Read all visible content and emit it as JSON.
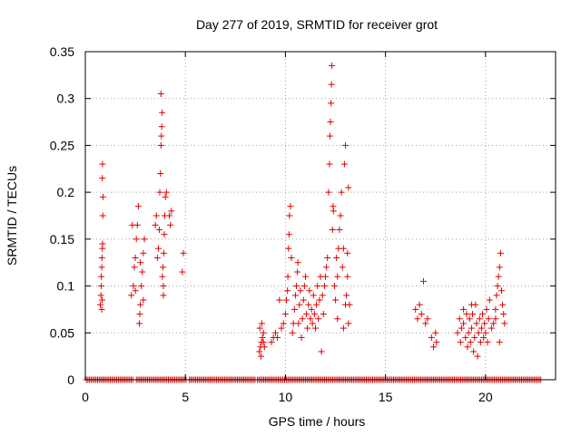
{
  "chart_data": {
    "type": "scatter",
    "title": "Day 277 of 2019, SRMTID for receiver grot",
    "xlabel": "GPS time / hours",
    "ylabel": "SRMTID / TECUs",
    "xlim": [
      0,
      23.5
    ],
    "ylim": [
      0,
      0.35
    ],
    "xticks": [
      0,
      5,
      10,
      15,
      20
    ],
    "xtick_labels": [
      "0",
      "5",
      "10",
      "15",
      "20"
    ],
    "yticks": [
      0,
      0.05,
      0.1,
      0.15,
      0.2,
      0.25,
      0.3,
      0.35
    ],
    "ytick_labels": [
      "0",
      "0.05",
      "0.1",
      "0.15",
      "0.2",
      "0.25",
      "0.3",
      "0.35"
    ],
    "grid": true,
    "marker": "plus",
    "color": "#e00000",
    "series": [
      {
        "name": "SRMTID",
        "points": [
          [
            0.75,
            0.08
          ],
          [
            0.78,
            0.09
          ],
          [
            0.8,
            0.1
          ],
          [
            0.8,
            0.11
          ],
          [
            0.82,
            0.12
          ],
          [
            0.83,
            0.13
          ],
          [
            0.85,
            0.14
          ],
          [
            0.86,
            0.145
          ],
          [
            0.87,
            0.175
          ],
          [
            0.88,
            0.195
          ],
          [
            0.85,
            0.215
          ],
          [
            0.86,
            0.23
          ],
          [
            0.82,
            0.075
          ],
          [
            0.84,
            0.085
          ],
          [
            2.3,
            0.09
          ],
          [
            2.4,
            0.1
          ],
          [
            2.45,
            0.12
          ],
          [
            2.5,
            0.13
          ],
          [
            2.55,
            0.15
          ],
          [
            2.6,
            0.165
          ],
          [
            2.65,
            0.185
          ],
          [
            2.7,
            0.06
          ],
          [
            2.72,
            0.07
          ],
          [
            2.75,
            0.08
          ],
          [
            2.8,
            0.1
          ],
          [
            2.85,
            0.115
          ],
          [
            2.9,
            0.135
          ],
          [
            2.95,
            0.15
          ],
          [
            2.35,
            0.165
          ],
          [
            2.5,
            0.095
          ],
          [
            2.75,
            0.125
          ],
          [
            2.9,
            0.085
          ],
          [
            3.5,
            0.165
          ],
          [
            3.55,
            0.175
          ],
          [
            3.6,
            0.13
          ],
          [
            3.7,
            0.16
          ],
          [
            3.72,
            0.2
          ],
          [
            3.75,
            0.22
          ],
          [
            3.78,
            0.25
          ],
          [
            3.8,
            0.26
          ],
          [
            3.82,
            0.27
          ],
          [
            3.84,
            0.285
          ],
          [
            3.78,
            0.305
          ],
          [
            3.85,
            0.11
          ],
          [
            3.88,
            0.12
          ],
          [
            3.9,
            0.1
          ],
          [
            3.92,
            0.135
          ],
          [
            3.95,
            0.155
          ],
          [
            3.97,
            0.175
          ],
          [
            4.0,
            0.195
          ],
          [
            4.05,
            0.2
          ],
          [
            4.2,
            0.175
          ],
          [
            4.25,
            0.165
          ],
          [
            4.3,
            0.18
          ],
          [
            3.65,
            0.14
          ],
          [
            3.9,
            0.09
          ],
          [
            4.9,
            0.135
          ],
          [
            4.85,
            0.115
          ],
          [
            8.7,
            0.03
          ],
          [
            8.75,
            0.035
          ],
          [
            8.8,
            0.04
          ],
          [
            8.85,
            0.045
          ],
          [
            8.9,
            0.05
          ],
          [
            8.72,
            0.055
          ],
          [
            8.78,
            0.025
          ],
          [
            8.82,
            0.06
          ],
          [
            8.9,
            0.04
          ],
          [
            8.95,
            0.035
          ],
          [
            9.3,
            0.04
          ],
          [
            9.4,
            0.045
          ],
          [
            9.5,
            0.05
          ],
          [
            9.6,
            0.045
          ],
          [
            9.7,
            0.085
          ],
          [
            9.8,
            0.055
          ],
          [
            9.9,
            0.06
          ],
          [
            10.0,
            0.07
          ],
          [
            10.05,
            0.085
          ],
          [
            10.1,
            0.095
          ],
          [
            10.12,
            0.11
          ],
          [
            10.15,
            0.14
          ],
          [
            10.18,
            0.155
          ],
          [
            10.2,
            0.175
          ],
          [
            10.25,
            0.185
          ],
          [
            10.3,
            0.13
          ],
          [
            10.35,
            0.05
          ],
          [
            10.4,
            0.06
          ],
          [
            10.45,
            0.075
          ],
          [
            10.5,
            0.09
          ],
          [
            10.55,
            0.1
          ],
          [
            10.6,
            0.115
          ],
          [
            10.62,
            0.125
          ],
          [
            10.65,
            0.06
          ],
          [
            10.7,
            0.08
          ],
          [
            10.75,
            0.095
          ],
          [
            10.8,
            0.045
          ],
          [
            10.85,
            0.065
          ],
          [
            10.9,
            0.085
          ],
          [
            10.95,
            0.1
          ],
          [
            11.0,
            0.11
          ],
          [
            11.05,
            0.07
          ],
          [
            11.1,
            0.055
          ],
          [
            11.15,
            0.08
          ],
          [
            11.2,
            0.095
          ],
          [
            11.25,
            0.065
          ],
          [
            11.3,
            0.075
          ],
          [
            11.35,
            0.06
          ],
          [
            11.4,
            0.09
          ],
          [
            11.45,
            0.07
          ],
          [
            11.5,
            0.055
          ],
          [
            11.55,
            0.08
          ],
          [
            11.6,
            0.1
          ],
          [
            11.65,
            0.065
          ],
          [
            11.7,
            0.085
          ],
          [
            11.75,
            0.11
          ],
          [
            11.8,
            0.03
          ],
          [
            11.85,
            0.09
          ],
          [
            11.9,
            0.07
          ],
          [
            11.95,
            0.1
          ],
          [
            12.0,
            0.11
          ],
          [
            12.05,
            0.12
          ],
          [
            12.1,
            0.13
          ],
          [
            12.15,
            0.2
          ],
          [
            12.2,
            0.23
          ],
          [
            12.22,
            0.26
          ],
          [
            12.25,
            0.275
          ],
          [
            12.28,
            0.295
          ],
          [
            12.3,
            0.315
          ],
          [
            12.32,
            0.335
          ],
          [
            12.35,
            0.16
          ],
          [
            12.38,
            0.185
          ],
          [
            12.4,
            0.18
          ],
          [
            12.45,
            0.1
          ],
          [
            12.5,
            0.085
          ],
          [
            12.55,
            0.13
          ],
          [
            12.6,
            0.11
          ],
          [
            12.65,
            0.14
          ],
          [
            12.7,
            0.16
          ],
          [
            12.75,
            0.175
          ],
          [
            12.8,
            0.2
          ],
          [
            12.85,
            0.12
          ],
          [
            12.9,
            0.14
          ],
          [
            12.95,
            0.23
          ],
          [
            13.0,
            0.25
          ],
          [
            13.05,
            0.09
          ],
          [
            13.1,
            0.11
          ],
          [
            13.15,
            0.06
          ],
          [
            13.2,
            0.08
          ],
          [
            12.6,
            0.065
          ],
          [
            12.9,
            0.055
          ],
          [
            13.0,
            0.08
          ],
          [
            13.1,
            0.135
          ],
          [
            13.15,
            0.205
          ],
          [
            16.5,
            0.075
          ],
          [
            16.6,
            0.065
          ],
          [
            16.7,
            0.08
          ],
          [
            16.8,
            0.07
          ],
          [
            16.9,
            0.105
          ],
          [
            17.0,
            0.06
          ],
          [
            17.1,
            0.065
          ],
          [
            17.3,
            0.045
          ],
          [
            17.4,
            0.035
          ],
          [
            17.5,
            0.05
          ],
          [
            17.55,
            0.04
          ],
          [
            18.6,
            0.05
          ],
          [
            18.7,
            0.065
          ],
          [
            18.75,
            0.04
          ],
          [
            18.8,
            0.055
          ],
          [
            18.9,
            0.06
          ],
          [
            19.0,
            0.045
          ],
          [
            19.05,
            0.07
          ],
          [
            19.1,
            0.035
          ],
          [
            19.15,
            0.05
          ],
          [
            19.2,
            0.065
          ],
          [
            19.25,
            0.04
          ],
          [
            19.3,
            0.055
          ],
          [
            19.35,
            0.07
          ],
          [
            19.4,
            0.03
          ],
          [
            19.45,
            0.045
          ],
          [
            19.5,
            0.08
          ],
          [
            19.55,
            0.06
          ],
          [
            19.6,
            0.025
          ],
          [
            19.65,
            0.05
          ],
          [
            19.7,
            0.065
          ],
          [
            19.75,
            0.04
          ],
          [
            19.8,
            0.055
          ],
          [
            19.85,
            0.07
          ],
          [
            19.9,
            0.045
          ],
          [
            19.95,
            0.06
          ],
          [
            20.0,
            0.05
          ],
          [
            20.05,
            0.075
          ],
          [
            20.1,
            0.04
          ],
          [
            20.15,
            0.065
          ],
          [
            20.2,
            0.085
          ],
          [
            20.3,
            0.055
          ],
          [
            20.4,
            0.06
          ],
          [
            20.5,
            0.075
          ],
          [
            20.55,
            0.09
          ],
          [
            20.6,
            0.1
          ],
          [
            20.65,
            0.11
          ],
          [
            20.7,
            0.12
          ],
          [
            20.75,
            0.135
          ],
          [
            20.8,
            0.095
          ],
          [
            20.85,
            0.08
          ],
          [
            20.9,
            0.07
          ],
          [
            20.95,
            0.06
          ],
          [
            20.7,
            0.04
          ],
          [
            20.5,
            0.065
          ],
          [
            19.3,
            0.08
          ],
          [
            18.9,
            0.075
          ]
        ]
      }
    ],
    "zero_band_segments": [
      [
        0.05,
        2.4
      ],
      [
        2.55,
        5.1
      ],
      [
        5.2,
        8.5
      ],
      [
        8.6,
        22.8
      ]
    ]
  }
}
